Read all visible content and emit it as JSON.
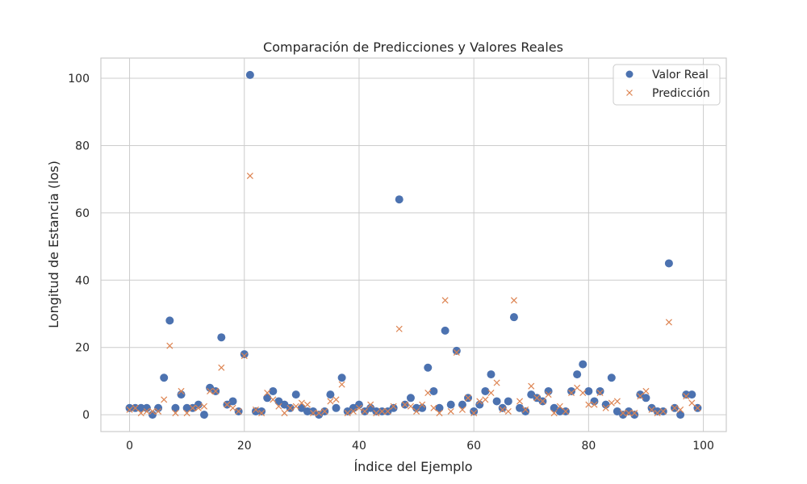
{
  "chart_data": {
    "type": "scatter",
    "title": "Comparación de Predicciones y Valores Reales",
    "xlabel": "Índice del Ejemplo",
    "ylabel": "Longitud de Estancia (los)",
    "xlim": [
      -5,
      104
    ],
    "ylim": [
      -5,
      106
    ],
    "xticks": [
      0,
      20,
      40,
      60,
      80,
      100
    ],
    "yticks": [
      0,
      20,
      40,
      60,
      80,
      100
    ],
    "grid": true,
    "legend_position": "top-right",
    "x": [
      0,
      1,
      2,
      3,
      4,
      5,
      6,
      7,
      8,
      9,
      10,
      11,
      12,
      13,
      14,
      15,
      16,
      17,
      18,
      19,
      20,
      21,
      22,
      23,
      24,
      25,
      26,
      27,
      28,
      29,
      30,
      31,
      32,
      33,
      34,
      35,
      36,
      37,
      38,
      39,
      40,
      41,
      42,
      43,
      44,
      45,
      46,
      47,
      48,
      49,
      50,
      51,
      52,
      53,
      54,
      55,
      56,
      57,
      58,
      59,
      60,
      61,
      62,
      63,
      64,
      65,
      66,
      67,
      68,
      69,
      70,
      71,
      72,
      73,
      74,
      75,
      76,
      77,
      78,
      79,
      80,
      81,
      82,
      83,
      84,
      85,
      86,
      87,
      88,
      89,
      90,
      91,
      92,
      93,
      94,
      95,
      96,
      97,
      98,
      99
    ],
    "series": [
      {
        "name": "Valor Real",
        "marker": "circle",
        "color": "#4c72b0",
        "values": [
          2,
          2,
          2,
          2,
          0,
          2,
          11,
          28,
          2,
          6,
          2,
          2,
          3,
          0,
          8,
          7,
          23,
          3,
          4,
          1,
          18,
          101,
          1,
          1,
          5,
          7,
          4,
          3,
          2,
          6,
          2,
          1,
          1,
          0,
          1,
          6,
          2,
          11,
          1,
          2,
          3,
          1,
          2,
          1,
          1,
          1,
          2,
          64,
          3,
          5,
          2,
          2,
          14,
          7,
          2,
          25,
          3,
          19,
          3,
          5,
          1,
          3,
          7,
          12,
          4,
          2,
          4,
          29,
          2,
          1,
          6,
          5,
          4,
          7,
          2,
          1,
          1,
          7,
          12,
          15,
          7,
          4,
          7,
          3,
          11,
          1,
          0,
          1,
          0,
          6,
          5,
          2,
          1,
          1,
          45,
          2,
          0,
          6,
          6,
          2
        ]
      },
      {
        "name": "Predicción",
        "marker": "x",
        "color": "#dd8452",
        "values": [
          1.5,
          2,
          0.5,
          1,
          1,
          1,
          4.5,
          20.5,
          0.5,
          7,
          0.5,
          2,
          2,
          2.5,
          7,
          7,
          14,
          3,
          2,
          1,
          17.5,
          71,
          1.5,
          0.5,
          6.5,
          4.5,
          2.5,
          0.5,
          2,
          2.5,
          3.5,
          3,
          0.5,
          0.5,
          1,
          4,
          4.5,
          9,
          0.5,
          1,
          2,
          1,
          3,
          0.5,
          1,
          1,
          2.5,
          25.5,
          3,
          2.5,
          1,
          3,
          6.5,
          2,
          0.5,
          34,
          1,
          18.5,
          1.5,
          5,
          0.5,
          4,
          4.5,
          6.5,
          9.5,
          1.5,
          1,
          34,
          4,
          1.5,
          8.5,
          5,
          4,
          6,
          0.5,
          2.5,
          1,
          6.5,
          8,
          6.5,
          3,
          3,
          6.5,
          2,
          3.5,
          4,
          0.5,
          0.5,
          0.5,
          5.5,
          7,
          1.5,
          0.5,
          1,
          27.5,
          2,
          1.5,
          5.5,
          3.5,
          2
        ]
      }
    ]
  }
}
